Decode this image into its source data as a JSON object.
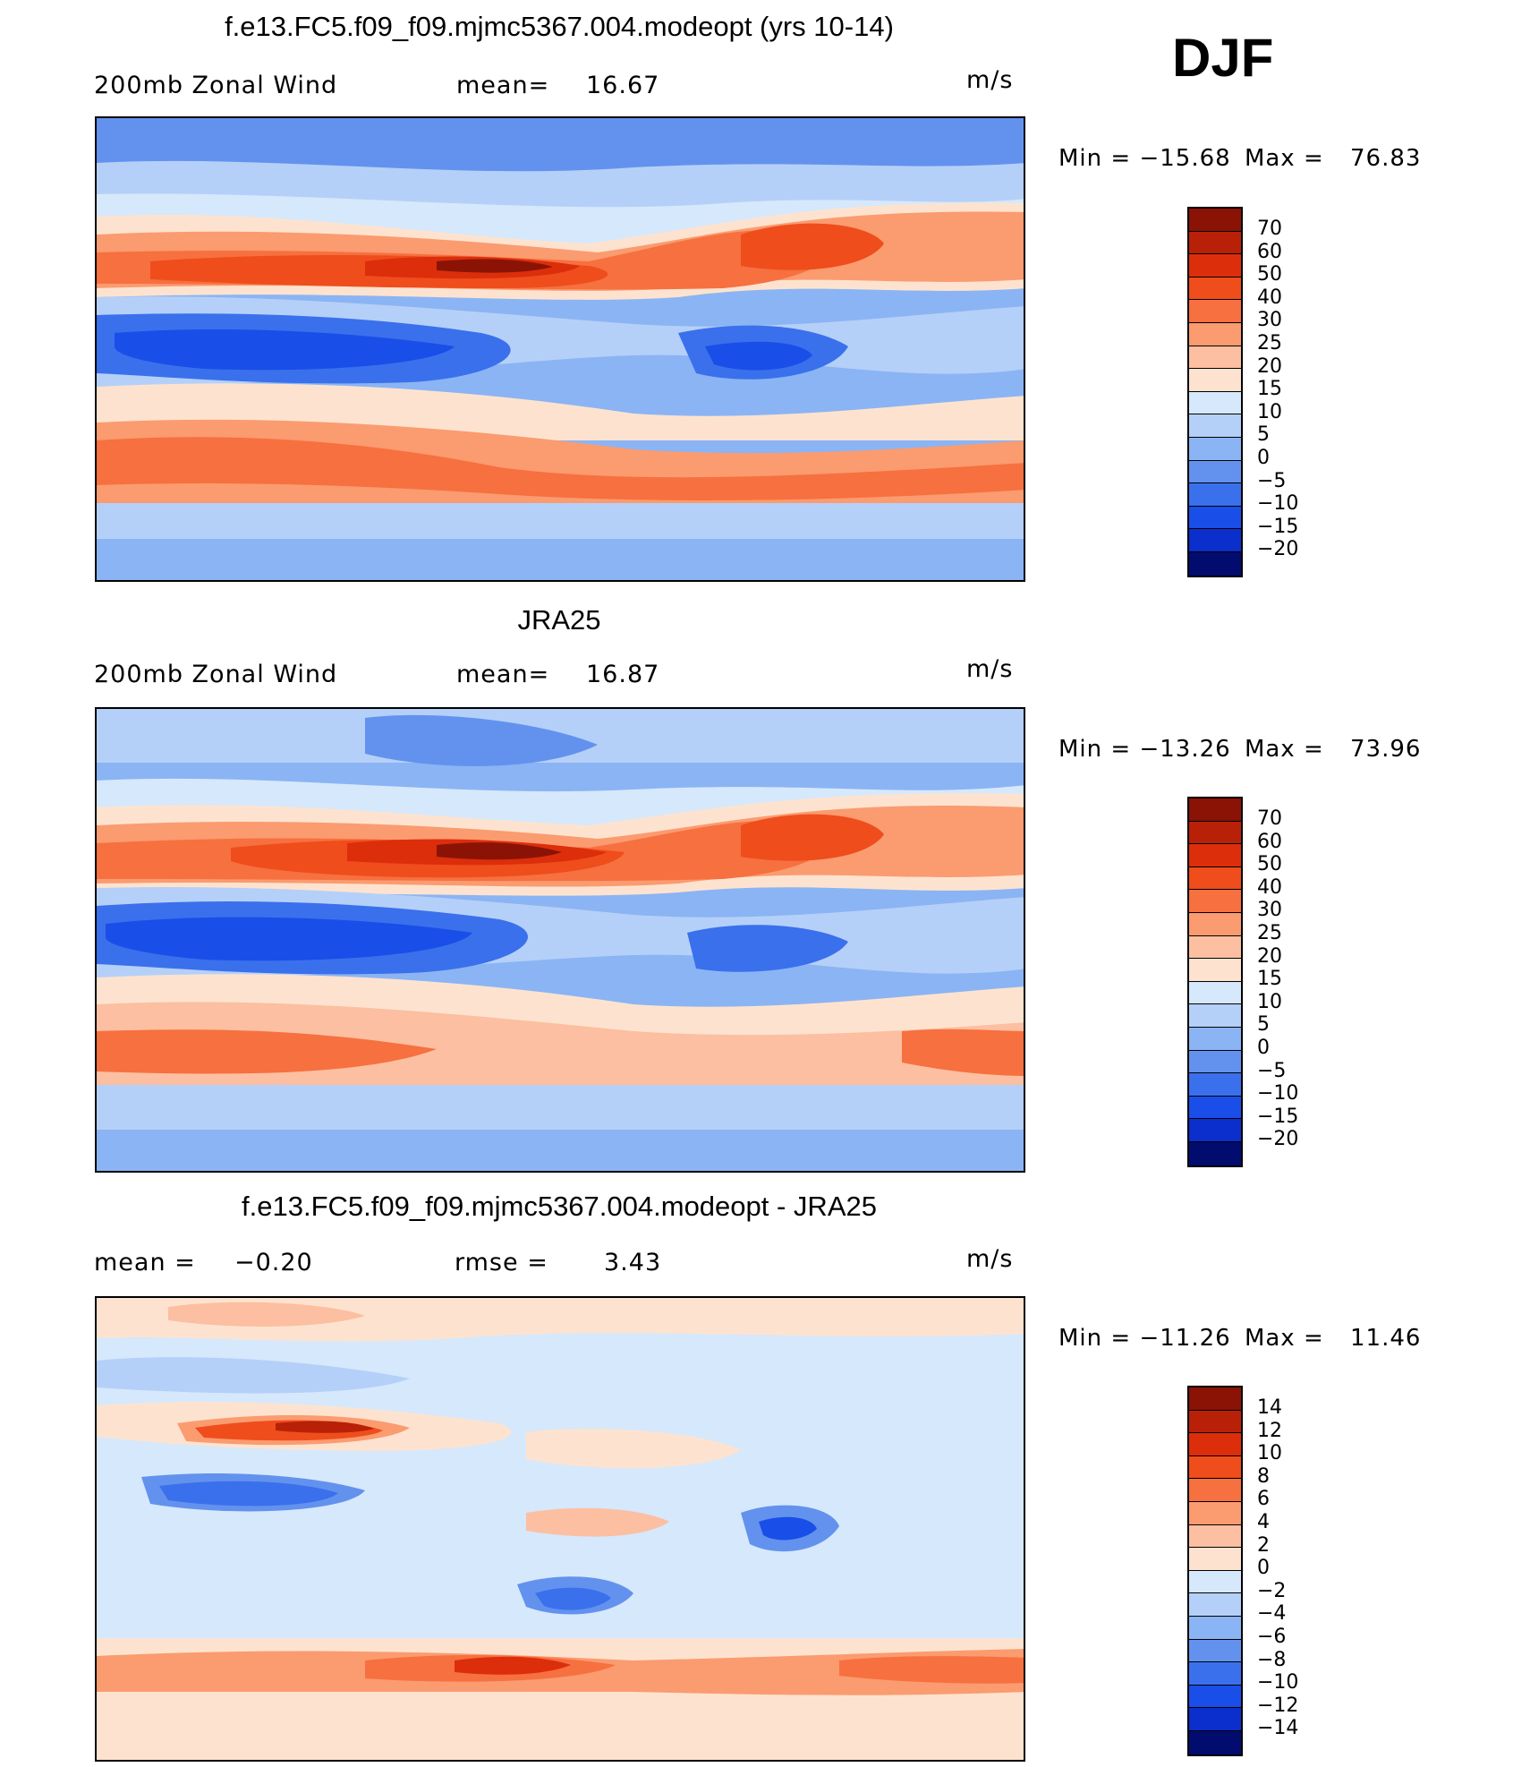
{
  "season": "DJF",
  "palette": {
    "warm": [
      "#fde3cf",
      "#fcbfa1",
      "#fb9b70",
      "#f7703f",
      "#ef4d1c",
      "#dc2e0b",
      "#b82107",
      "#8a1306"
    ],
    "cool": [
      "#d6e8fb",
      "#b5d0f8",
      "#8bb4f4",
      "#6392ee",
      "#3a70ec",
      "#1a4ee8",
      "#0b2fcc",
      "#061b9e",
      "#020b6e"
    ]
  },
  "panels": [
    {
      "title": "f.e13.FC5.f09_f09.mjmc5367.004.modeopt (yrs 10-14)",
      "left_label": "200mb Zonal Wind",
      "stat1_label": "mean=",
      "stat1_value": "16.67",
      "stat2_label": "",
      "stat2_value": "",
      "units": "m/s",
      "min_label": "Min =",
      "min_value": "−15.68",
      "max_label": "Max =",
      "max_value": "76.83",
      "levels": [
        "70",
        "60",
        "50",
        "40",
        "30",
        "25",
        "20",
        "15",
        "10",
        "5",
        "0",
        "−5",
        "−10",
        "−15",
        "−20"
      ],
      "colors": [
        "#8a1306",
        "#b82107",
        "#dc2e0b",
        "#ef4d1c",
        "#f7703f",
        "#fb9b70",
        "#fcbfa1",
        "#fde3cf",
        "#d6e8fb",
        "#b5d0f8",
        "#8bb4f4",
        "#6392ee",
        "#3a70ec",
        "#1a4ee8",
        "#0b2fcc",
        "#020b6e"
      ]
    },
    {
      "title": "JRA25",
      "left_label": "200mb Zonal Wind",
      "stat1_label": "mean=",
      "stat1_value": "16.87",
      "stat2_label": "",
      "stat2_value": "",
      "units": "m/s",
      "min_label": "Min =",
      "min_value": "−13.26",
      "max_label": "Max =",
      "max_value": "73.96",
      "levels": [
        "70",
        "60",
        "50",
        "40",
        "30",
        "25",
        "20",
        "15",
        "10",
        "5",
        "0",
        "−5",
        "−10",
        "−15",
        "−20"
      ],
      "colors": [
        "#8a1306",
        "#b82107",
        "#dc2e0b",
        "#ef4d1c",
        "#f7703f",
        "#fb9b70",
        "#fcbfa1",
        "#fde3cf",
        "#d6e8fb",
        "#b5d0f8",
        "#8bb4f4",
        "#6392ee",
        "#3a70ec",
        "#1a4ee8",
        "#0b2fcc",
        "#020b6e"
      ]
    },
    {
      "title": "f.e13.FC5.f09_f09.mjmc5367.004.modeopt - JRA25",
      "left_label": "mean =",
      "stat1_label": "",
      "stat1_value": "−0.20",
      "stat2_label": "rmse =",
      "stat2_value": "3.43",
      "units": "m/s",
      "min_label": "Min =",
      "min_value": "−11.26",
      "max_label": "Max =",
      "max_value": "11.46",
      "levels": [
        "14",
        "12",
        "10",
        "8",
        "6",
        "4",
        "2",
        "0",
        "−2",
        "−4",
        "−6",
        "−8",
        "−10",
        "−12",
        "−14"
      ],
      "colors": [
        "#8a1306",
        "#b82107",
        "#dc2e0b",
        "#ef4d1c",
        "#f7703f",
        "#fb9b70",
        "#fcbfa1",
        "#fde3cf",
        "#d6e8fb",
        "#b5d0f8",
        "#8bb4f4",
        "#6392ee",
        "#3a70ec",
        "#1a4ee8",
        "#0b2fcc",
        "#020b6e"
      ]
    }
  ]
}
